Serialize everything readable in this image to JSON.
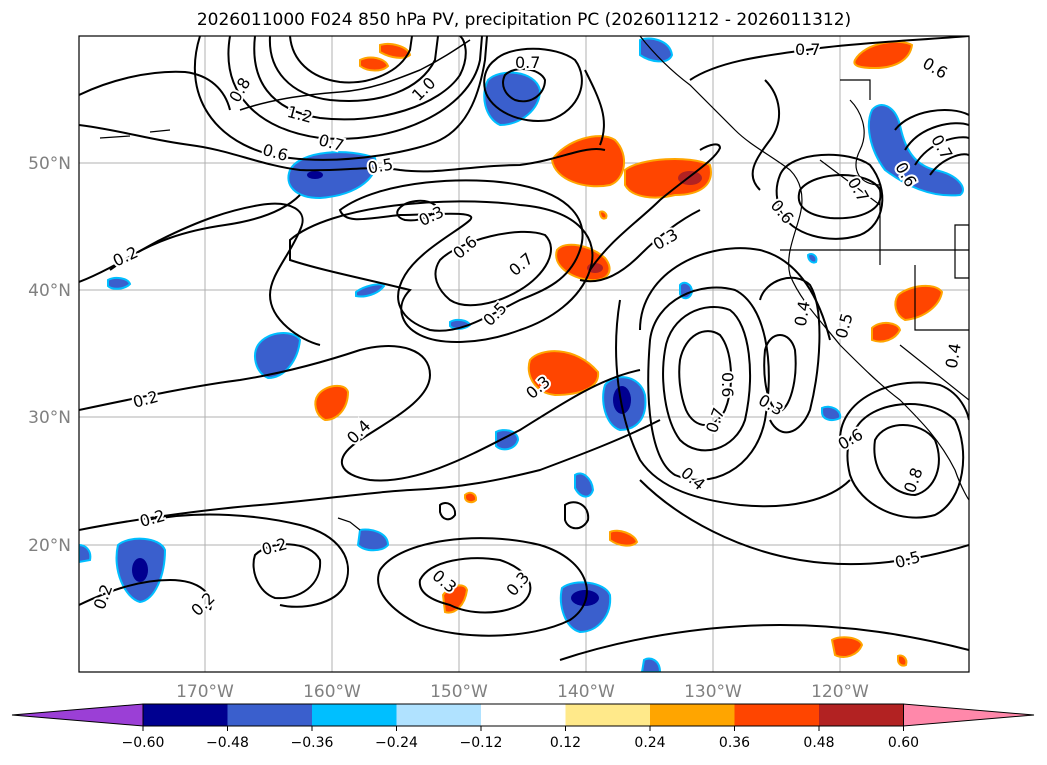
{
  "title": "2026011000 F024 850 hPa PV, precipitation PC (2026011212 - 2026011312)",
  "lat_labels": [
    "50°N",
    "40°N",
    "30°N",
    "20°N"
  ],
  "lon_labels": [
    "170°W",
    "160°W",
    "150°W",
    "140°W",
    "130°W",
    "120°W"
  ],
  "colorbar": {
    "ticks": [
      "−0.60",
      "−0.48",
      "−0.36",
      "−0.24",
      "−0.12",
      "0.12",
      "0.24",
      "0.36",
      "0.48",
      "0.60"
    ],
    "colors": [
      "#9b3fd6",
      "#000090",
      "#3a5fcd",
      "#00bfff",
      "#b0e2ff",
      "#ffffff",
      "#ffe98a",
      "#ffa500",
      "#ff4500",
      "#b22222",
      "#ff88aa"
    ]
  },
  "contour_labels": [
    "0.7",
    "0.8",
    "1.0",
    "1.2",
    "0.7",
    "0.6",
    "0.5",
    "0.3",
    "0.6",
    "0.7",
    "0.5",
    "0.3",
    "0.2",
    "0.2",
    "0.4",
    "0.3",
    "0.2",
    "0.2",
    "0.2",
    "0.2",
    "0.3",
    "0.3",
    "0.4",
    "0.7",
    "0.6",
    "0.3",
    "0.4",
    "0.5",
    "0.6",
    "0.8",
    "0.5",
    "0.4",
    "0.7",
    "0.6",
    "0.6",
    "0.7",
    "0.6",
    "0.7"
  ]
}
